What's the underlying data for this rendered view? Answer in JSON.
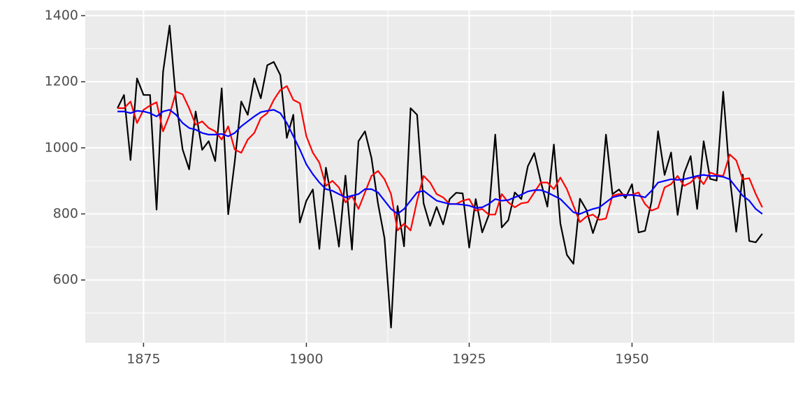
{
  "chart_data": {
    "type": "line",
    "x": [
      1871,
      1872,
      1873,
      1874,
      1875,
      1876,
      1877,
      1878,
      1879,
      1880,
      1881,
      1882,
      1883,
      1884,
      1885,
      1886,
      1887,
      1888,
      1889,
      1890,
      1891,
      1892,
      1893,
      1894,
      1895,
      1896,
      1897,
      1898,
      1899,
      1900,
      1901,
      1902,
      1903,
      1904,
      1905,
      1906,
      1907,
      1908,
      1909,
      1910,
      1911,
      1912,
      1913,
      1914,
      1915,
      1916,
      1917,
      1918,
      1919,
      1920,
      1921,
      1922,
      1923,
      1924,
      1925,
      1926,
      1927,
      1928,
      1929,
      1930,
      1931,
      1932,
      1933,
      1934,
      1935,
      1936,
      1937,
      1938,
      1939,
      1940,
      1941,
      1942,
      1943,
      1944,
      1945,
      1946,
      1947,
      1948,
      1949,
      1950,
      1951,
      1952,
      1953,
      1954,
      1955,
      1956,
      1957,
      1958,
      1959,
      1960,
      1961,
      1962,
      1963,
      1964,
      1965,
      1966,
      1967,
      1968,
      1969,
      1970
    ],
    "series": [
      {
        "color": "#000000",
        "values": [
          1120,
          1160,
          963,
          1210,
          1160,
          1160,
          813,
          1230,
          1370,
          1140,
          995,
          935,
          1110,
          994,
          1020,
          960,
          1180,
          799,
          958,
          1140,
          1100,
          1210,
          1150,
          1250,
          1260,
          1220,
          1030,
          1100,
          774,
          840,
          874,
          694,
          940,
          833,
          701,
          916,
          692,
          1020,
          1050,
          969,
          831,
          726,
          456,
          824,
          702,
          1120,
          1100,
          832,
          764,
          821,
          768,
          845,
          864,
          862,
          698,
          845,
          744,
          796,
          1040,
          759,
          781,
          865,
          845,
          944,
          984,
          897,
          822,
          1010,
          771,
          676,
          649,
          846,
          812,
          742,
          801,
          1040,
          860,
          874,
          848,
          890,
          744,
          749,
          838,
          1050,
          918,
          986,
          797,
          923,
          975,
          815,
          1020,
          906,
          901,
          1170,
          912,
          746,
          919,
          718,
          714,
          740
        ]
      },
      {
        "color": "#ff0000",
        "values": [
          1120,
          1120,
          1140,
          1075,
          1115,
          1128,
          1138,
          1050,
          1100,
          1170,
          1162,
          1120,
          1070,
          1080,
          1060,
          1050,
          1025,
          1065,
          995,
          985,
          1025,
          1045,
          1090,
          1105,
          1145,
          1175,
          1187,
          1145,
          1135,
          1035,
          985,
          955,
          885,
          900,
          880,
          835,
          855,
          815,
          865,
          915,
          930,
          905,
          860,
          750,
          770,
          750,
          840,
          915,
          895,
          860,
          850,
          830,
          830,
          840,
          845,
          810,
          815,
          798,
          798,
          860,
          835,
          820,
          832,
          835,
          865,
          895,
          895,
          875,
          910,
          875,
          825,
          775,
          792,
          798,
          782,
          786,
          855,
          860,
          858,
          858,
          865,
          830,
          810,
          818,
          880,
          890,
          915,
          885,
          895,
          915,
          890,
          925,
          918,
          915,
          980,
          962,
          905,
          908,
          860,
          820
        ]
      },
      {
        "color": "#0000ff",
        "values": [
          1110,
          1110,
          1105,
          1112,
          1110,
          1105,
          1095,
          1110,
          1115,
          1100,
          1075,
          1060,
          1055,
          1045,
          1040,
          1040,
          1042,
          1035,
          1045,
          1065,
          1080,
          1095,
          1108,
          1112,
          1115,
          1105,
          1075,
          1035,
          995,
          950,
          920,
          895,
          875,
          870,
          860,
          850,
          855,
          860,
          875,
          875,
          865,
          840,
          815,
          800,
          815,
          840,
          865,
          870,
          855,
          840,
          835,
          830,
          830,
          828,
          825,
          818,
          820,
          830,
          845,
          840,
          842,
          850,
          858,
          868,
          872,
          872,
          865,
          855,
          845,
          825,
          805,
          800,
          808,
          815,
          820,
          835,
          850,
          855,
          857,
          857,
          855,
          850,
          870,
          895,
          900,
          905,
          903,
          905,
          910,
          915,
          918,
          915,
          915,
          912,
          905,
          880,
          855,
          840,
          815,
          800
        ]
      }
    ],
    "xlim": [
      1866.05,
      1974.95
    ],
    "xticks": [
      1875,
      1900,
      1925,
      1950
    ],
    "ylim": [
      410.3,
      1415.7
    ],
    "yticks": [
      600,
      800,
      1000,
      1200,
      1400
    ],
    "grid": true
  }
}
